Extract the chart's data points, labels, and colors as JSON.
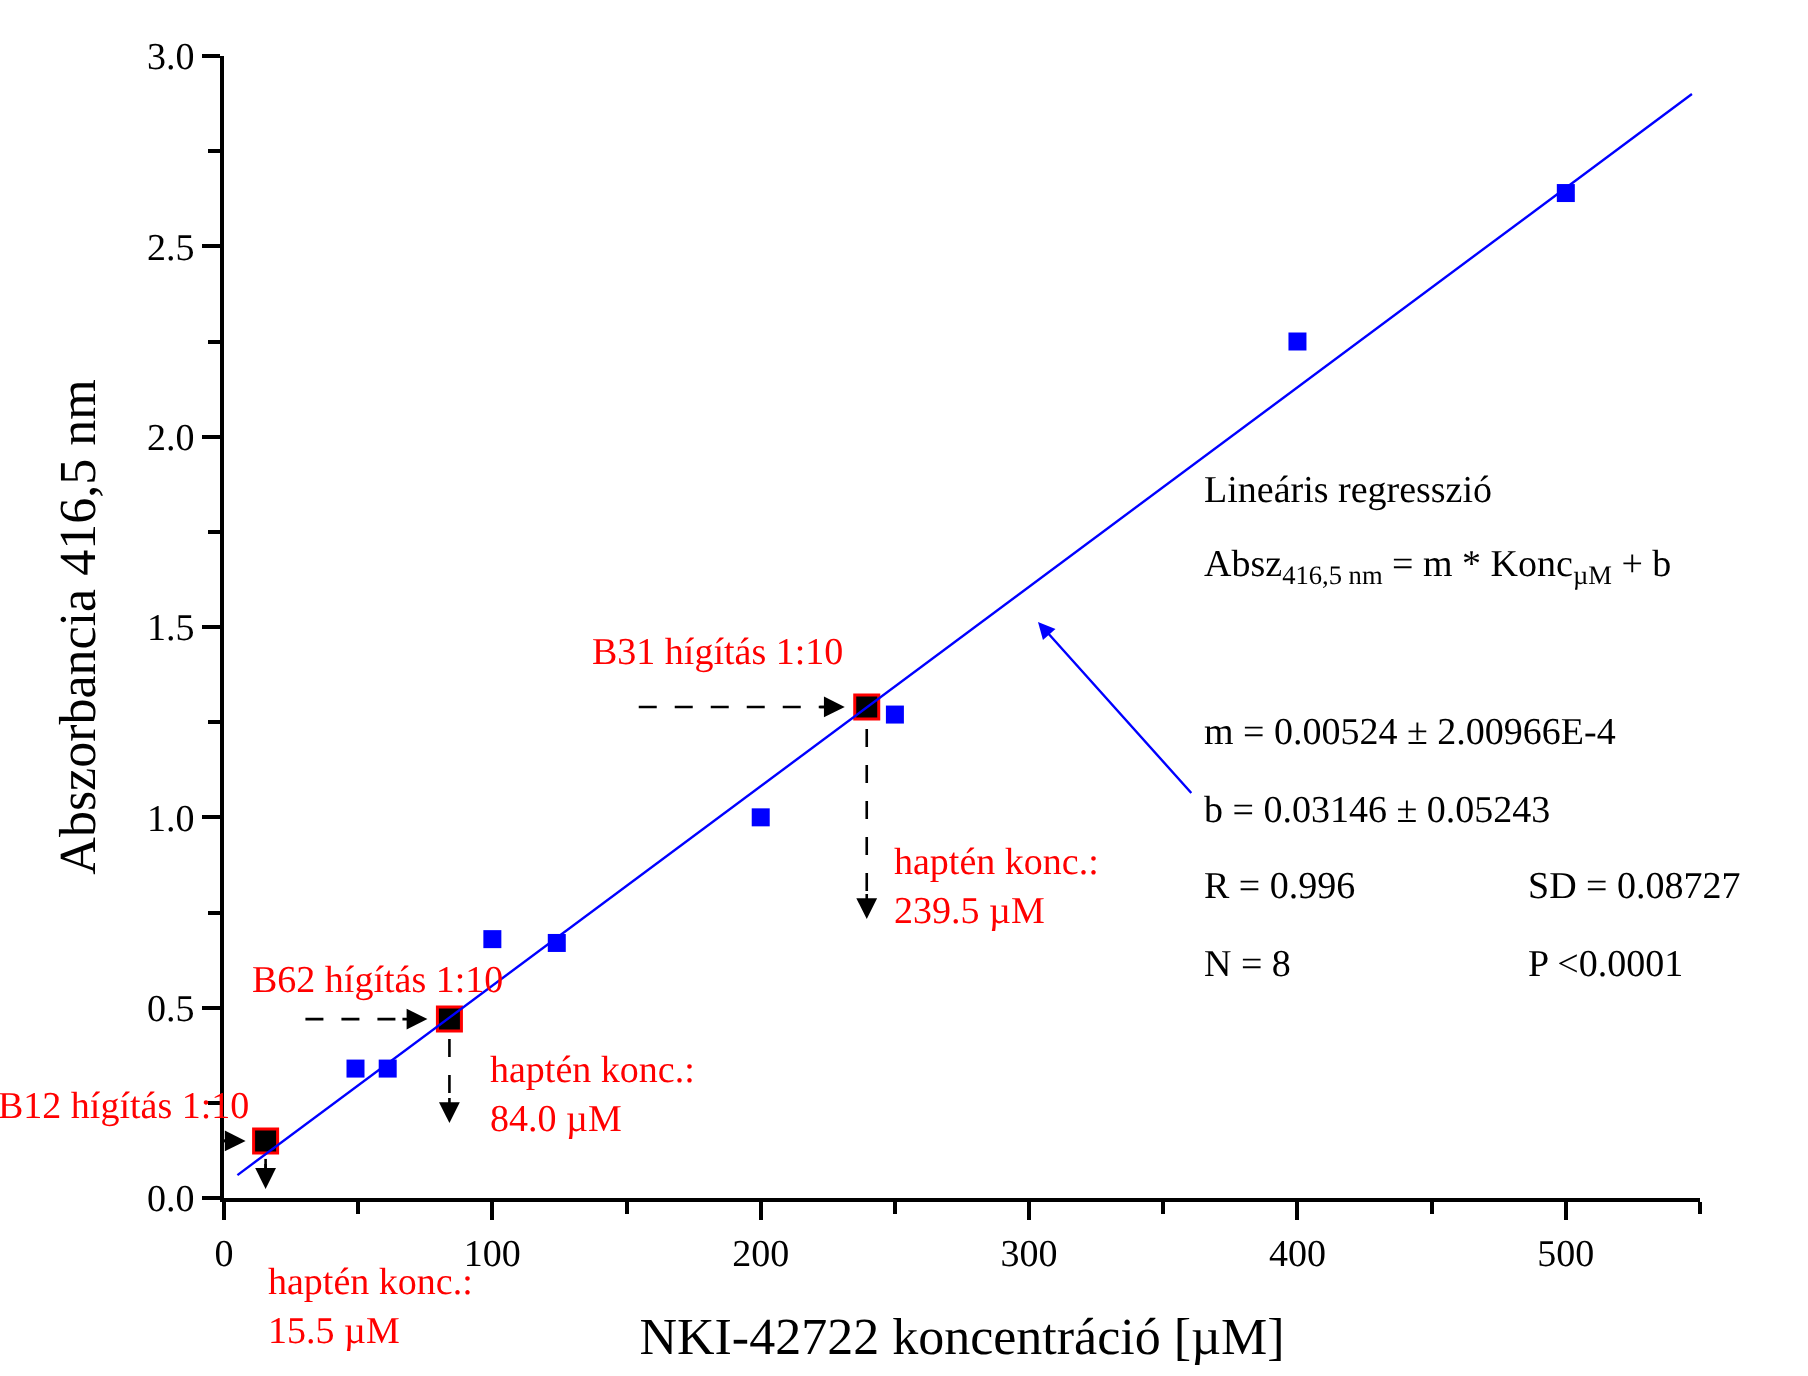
{
  "chart_data": {
    "type": "scatter",
    "xlabel": "NKI-42722 koncentráció [µM]",
    "ylabel": "Abszorbancia 416,5 nm",
    "xlim": [
      0,
      550
    ],
    "xticks": [
      0,
      100,
      200,
      300,
      400,
      500
    ],
    "ylim": [
      0,
      3.0
    ],
    "yticks": [
      {
        "value": 0,
        "label": "0.0"
      },
      {
        "value": 0.5,
        "label": "0.5"
      },
      {
        "value": 1,
        "label": "1.0"
      },
      {
        "value": 1.5,
        "label": "1.5"
      },
      {
        "value": 2,
        "label": "2.0"
      },
      {
        "value": 2.5,
        "label": "2.5"
      },
      {
        "value": 3,
        "label": "3.0"
      }
    ],
    "grid": false,
    "marker": "square",
    "series": [
      {
        "color": "#0000ff",
        "x": [
          49,
          61,
          100,
          124,
          200,
          250,
          400,
          500
        ],
        "values": [
          0.34,
          0.34,
          0.68,
          0.67,
          1.0,
          1.27,
          2.25,
          2.64
        ]
      },
      {
        "color": "#000000",
        "x": [
          15.5,
          84.0,
          239.5
        ],
        "values": [
          0.15,
          0.47,
          1.29
        ]
      },
      {
        "type": "line",
        "color": "#0000ff",
        "line_style": "solid",
        "marker": "none",
        "x": [
          5,
          547
        ],
        "values": [
          0.06,
          2.9
        ]
      }
    ],
    "annotations": [
      "Lineáris regresszió",
      "Absz$_{416,5 nm}$ = m * Konc$_{µM}$ + b",
      "m = 0.00524 ± 2.00966E-4",
      "b = 0.03146 ± 0.05243",
      "R = 0.996",
      "SD = 0.08727",
      "N = 8",
      "P <0.0001",
      {
        "text": "B12 hígítás 1:10",
        "x": 15.5,
        "y": 0.15
      },
      "haptén konc.:\n15.5 µM",
      {
        "text": "B62 hígítás 1:10",
        "x": 84.0,
        "y": 0.47
      },
      "haptén konc.:\n84.0 µM",
      {
        "text": "B31 hígítás 1:10",
        "x": 239.5,
        "y": 1.29
      },
      "haptén konc.:\n239.5 µM"
    ]
  }
}
